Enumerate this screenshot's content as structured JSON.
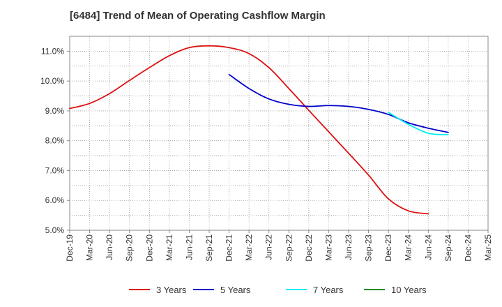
{
  "chart_data": {
    "type": "line",
    "title": "[6484]  Trend of Mean of Operating Cashflow Margin",
    "xlabel": "",
    "ylabel": "",
    "ylim": [
      5.0,
      11.5
    ],
    "yticks": [
      5.0,
      6.0,
      7.0,
      8.0,
      9.0,
      10.0,
      11.0
    ],
    "ytick_labels": [
      "5.0%",
      "6.0%",
      "7.0%",
      "8.0%",
      "9.0%",
      "10.0%",
      "11.0%"
    ],
    "categories": [
      "Dec-19",
      "Mar-20",
      "Jun-20",
      "Sep-20",
      "Dec-20",
      "Mar-21",
      "Jun-21",
      "Sep-21",
      "Dec-21",
      "Mar-22",
      "Jun-22",
      "Sep-22",
      "Dec-22",
      "Mar-23",
      "Jun-23",
      "Sep-23",
      "Dec-23",
      "Mar-24",
      "Jun-24",
      "Sep-24",
      "Dec-24",
      "Mar-25"
    ],
    "grid": true,
    "legend_position": "bottom",
    "series": [
      {
        "name": "3 Years",
        "color": "#dd1111",
        "values": [
          9.08,
          9.25,
          9.58,
          10.02,
          10.45,
          10.85,
          11.12,
          11.18,
          11.12,
          10.92,
          10.45,
          9.75,
          9.02,
          8.3,
          7.58,
          6.85,
          6.05,
          5.65,
          5.55,
          null,
          null,
          null
        ]
      },
      {
        "name": "5 Years",
        "color": "#0000cc",
        "values": [
          null,
          null,
          null,
          null,
          null,
          null,
          null,
          null,
          10.22,
          9.75,
          9.4,
          9.22,
          9.15,
          9.18,
          9.15,
          9.05,
          8.88,
          8.6,
          8.42,
          8.28,
          null,
          null
        ]
      },
      {
        "name": "7 Years",
        "color": "#00eeee",
        "values": [
          null,
          null,
          null,
          null,
          null,
          null,
          null,
          null,
          null,
          null,
          null,
          null,
          null,
          null,
          null,
          null,
          8.95,
          8.55,
          8.25,
          8.2,
          null,
          null
        ]
      },
      {
        "name": "10 Years",
        "color": "#228b22",
        "values": [
          null,
          null,
          null,
          null,
          null,
          null,
          null,
          null,
          null,
          null,
          null,
          null,
          null,
          null,
          null,
          null,
          null,
          null,
          null,
          null,
          null,
          null
        ]
      }
    ]
  }
}
